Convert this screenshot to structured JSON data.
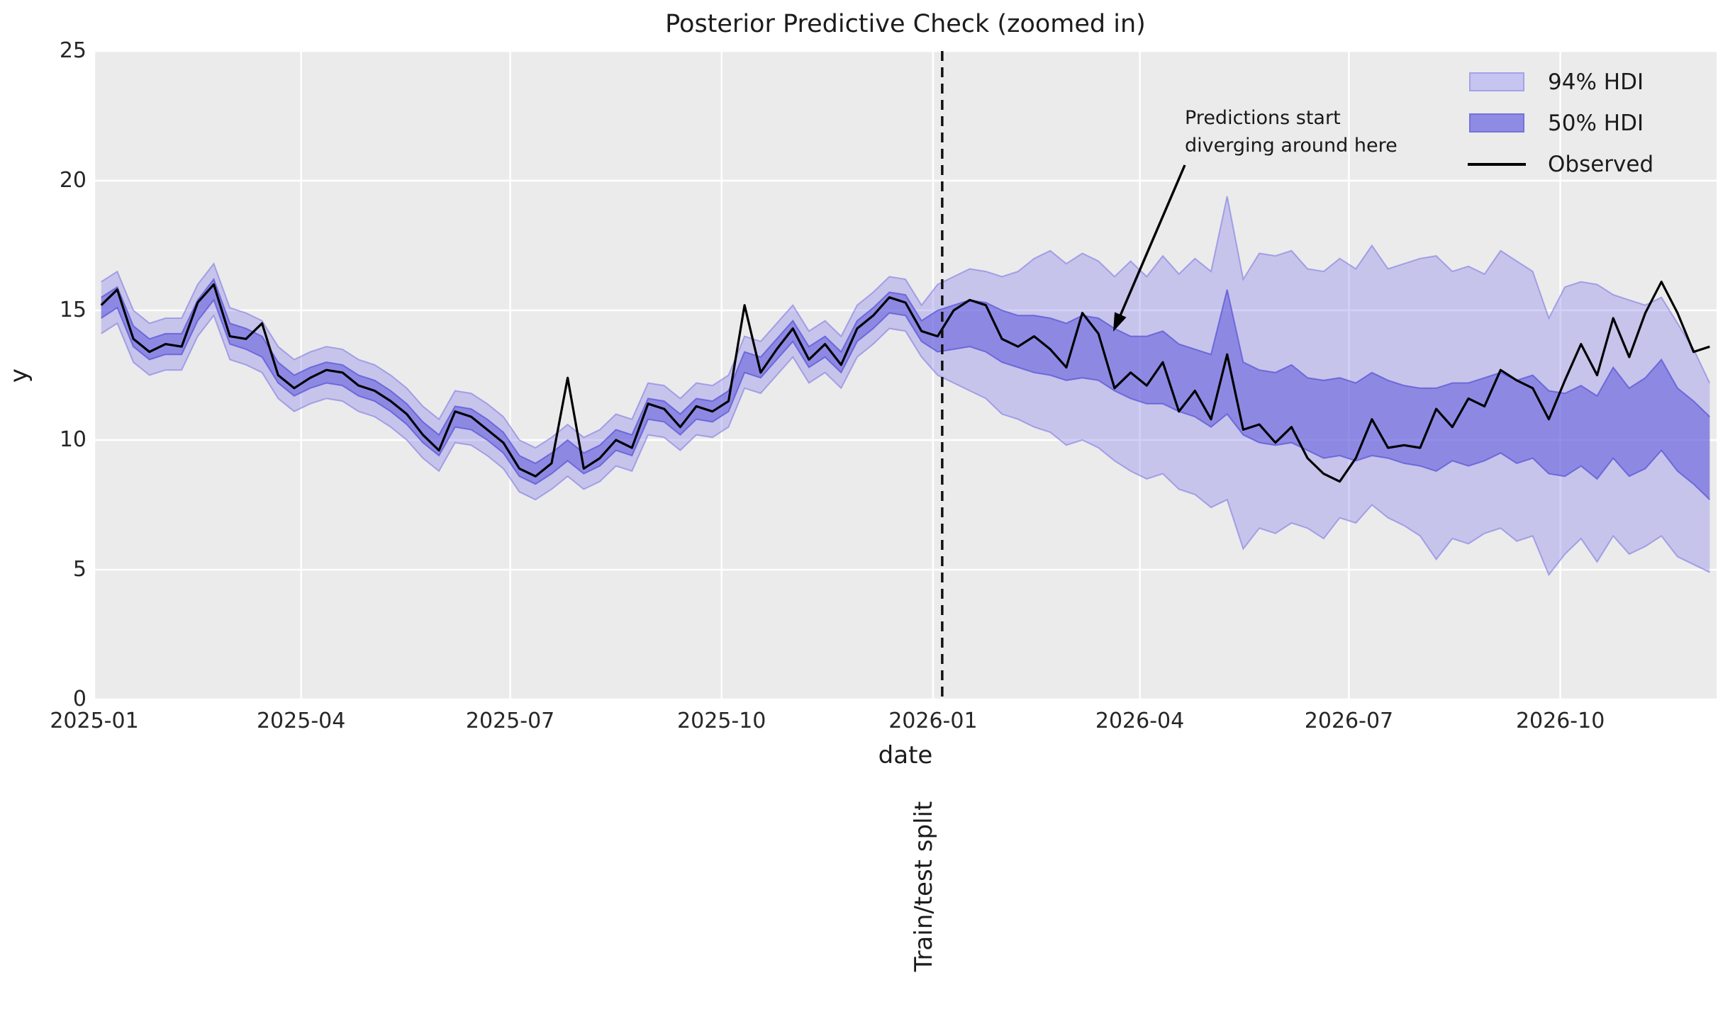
{
  "title": "Posterior Predictive Check (zoomed in)",
  "annotation": {
    "text": "Predictions start\ndiverging around here"
  },
  "split_label": "Train/test split",
  "legend": {
    "items": [
      {
        "label": "94% HDI",
        "swatch": "band94"
      },
      {
        "label": "50% HDI",
        "swatch": "band50"
      },
      {
        "label": "Observed",
        "swatch": "line"
      }
    ]
  },
  "colors": {
    "axes_background": "#ebebeb",
    "grid": "#ffffff",
    "band94_fill": "rgba(130,124,232,0.35)",
    "band94_edge": "rgba(110,104,225,0.50)",
    "band50_fill": "rgba(104,98,222,0.60)",
    "band50_edge": "rgba(80,74,212,0.65)",
    "observed_line": "#000000",
    "split_line": "#111111",
    "legend_band94_fill": "#c6c4f1",
    "legend_band94_edge": "#a5a2e8",
    "legend_band50_fill": "#8e8be4",
    "legend_band50_edge": "#7672d9"
  },
  "chart_data": {
    "type": "line",
    "title": "Posterior Predictive Check (zoomed in)",
    "xlabel": "date",
    "ylabel": "y",
    "ylim": [
      0,
      25
    ],
    "xlim": [
      "2025-01-01",
      "2026-12-08"
    ],
    "yticks": [
      0,
      5,
      10,
      15,
      20,
      25
    ],
    "xticks": [
      {
        "date": "2025-01-01",
        "label": "2025-01"
      },
      {
        "date": "2025-04-01",
        "label": "2025-04"
      },
      {
        "date": "2025-07-01",
        "label": "2025-07"
      },
      {
        "date": "2025-10-01",
        "label": "2025-10"
      },
      {
        "date": "2026-01-01",
        "label": "2026-01"
      },
      {
        "date": "2026-04-01",
        "label": "2026-04"
      },
      {
        "date": "2026-07-01",
        "label": "2026-07"
      },
      {
        "date": "2026-10-01",
        "label": "2026-10"
      }
    ],
    "grid": true,
    "legend_position": "upper right",
    "split_date": "2026-01-05",
    "annotation_point": {
      "date": "2026-03-14",
      "y": 14.2
    },
    "dates": [
      "2025-01-04",
      "2025-01-11",
      "2025-01-18",
      "2025-01-25",
      "2025-02-01",
      "2025-02-08",
      "2025-02-15",
      "2025-02-22",
      "2025-03-01",
      "2025-03-08",
      "2025-03-15",
      "2025-03-22",
      "2025-03-29",
      "2025-04-05",
      "2025-04-12",
      "2025-04-19",
      "2025-04-26",
      "2025-05-03",
      "2025-05-10",
      "2025-05-17",
      "2025-05-24",
      "2025-05-31",
      "2025-06-07",
      "2025-06-14",
      "2025-06-21",
      "2025-06-28",
      "2025-07-05",
      "2025-07-12",
      "2025-07-19",
      "2025-07-26",
      "2025-08-02",
      "2025-08-09",
      "2025-08-16",
      "2025-08-23",
      "2025-08-30",
      "2025-09-06",
      "2025-09-13",
      "2025-09-20",
      "2025-09-27",
      "2025-10-04",
      "2025-10-11",
      "2025-10-18",
      "2025-10-25",
      "2025-11-01",
      "2025-11-08",
      "2025-11-15",
      "2025-11-22",
      "2025-11-29",
      "2025-12-06",
      "2025-12-13",
      "2025-12-20",
      "2025-12-27",
      "2026-01-03",
      "2026-01-10",
      "2026-01-17",
      "2026-01-24",
      "2026-01-31",
      "2026-02-07",
      "2026-02-14",
      "2026-02-21",
      "2026-02-28",
      "2026-03-07",
      "2026-03-14",
      "2026-03-21",
      "2026-03-28",
      "2026-04-04",
      "2026-04-11",
      "2026-04-18",
      "2026-04-25",
      "2026-05-02",
      "2026-05-09",
      "2026-05-16",
      "2026-05-23",
      "2026-05-30",
      "2026-06-06",
      "2026-06-13",
      "2026-06-20",
      "2026-06-27",
      "2026-07-04",
      "2026-07-11",
      "2026-07-18",
      "2026-07-25",
      "2026-08-01",
      "2026-08-08",
      "2026-08-15",
      "2026-08-22",
      "2026-08-29",
      "2026-09-05",
      "2026-09-12",
      "2026-09-19",
      "2026-09-26",
      "2026-10-03",
      "2026-10-10",
      "2026-10-17",
      "2026-10-24",
      "2026-10-31",
      "2026-11-07",
      "2026-11-14",
      "2026-11-21",
      "2026-11-28",
      "2026-12-05"
    ],
    "series": [
      {
        "name": "Observed",
        "style": "line",
        "values": [
          15.2,
          15.8,
          13.9,
          13.4,
          13.7,
          13.6,
          15.3,
          16.0,
          14.0,
          13.9,
          14.5,
          12.5,
          12.0,
          12.4,
          12.7,
          12.6,
          12.1,
          11.9,
          11.5,
          11.0,
          10.2,
          9.6,
          11.1,
          10.9,
          10.4,
          9.9,
          8.9,
          8.6,
          9.1,
          12.4,
          8.9,
          9.3,
          10.0,
          9.7,
          11.4,
          11.2,
          10.5,
          11.3,
          11.1,
          11.5,
          15.2,
          12.6,
          13.5,
          14.3,
          13.1,
          13.7,
          12.9,
          14.3,
          14.8,
          15.5,
          15.3,
          14.2,
          14.0,
          15.0,
          15.4,
          15.2,
          13.9,
          13.6,
          14.0,
          13.5,
          12.8,
          14.9,
          14.1,
          12.0,
          12.6,
          12.1,
          13.0,
          11.1,
          11.9,
          10.8,
          13.3,
          10.4,
          10.6,
          9.9,
          10.5,
          9.3,
          8.7,
          8.4,
          9.3,
          10.8,
          9.7,
          9.8,
          9.7,
          11.2,
          10.5,
          11.6,
          11.3,
          12.7,
          12.3,
          12.0,
          10.8,
          12.3,
          13.7,
          12.5,
          14.7,
          13.2,
          14.9,
          16.1,
          14.9,
          13.4,
          13.6
        ]
      },
      {
        "name": "94% HDI",
        "style": "band",
        "lower": [
          14.1,
          14.5,
          13.0,
          12.5,
          12.7,
          12.7,
          14.0,
          14.8,
          13.1,
          12.9,
          12.6,
          11.6,
          11.1,
          11.4,
          11.6,
          11.5,
          11.1,
          10.9,
          10.5,
          10.0,
          9.3,
          8.8,
          9.9,
          9.8,
          9.4,
          8.9,
          8.0,
          7.7,
          8.1,
          8.6,
          8.1,
          8.4,
          9.0,
          8.8,
          10.2,
          10.1,
          9.6,
          10.2,
          10.1,
          10.5,
          12.0,
          11.8,
          12.5,
          13.2,
          12.2,
          12.6,
          12.0,
          13.2,
          13.7,
          14.3,
          14.2,
          13.2,
          12.5,
          12.2,
          11.9,
          11.6,
          11.0,
          10.8,
          10.5,
          10.3,
          9.8,
          10.0,
          9.7,
          9.2,
          8.8,
          8.5,
          8.7,
          8.1,
          7.9,
          7.4,
          7.7,
          5.8,
          6.6,
          6.4,
          6.8,
          6.6,
          6.2,
          7.0,
          6.8,
          7.5,
          7.0,
          6.7,
          6.3,
          5.4,
          6.2,
          6.0,
          6.4,
          6.6,
          6.1,
          6.3,
          4.8,
          5.6,
          6.2,
          5.3,
          6.3,
          5.6,
          5.9,
          6.3,
          5.5,
          5.2,
          4.9
        ],
        "upper": [
          16.1,
          16.5,
          15.0,
          14.5,
          14.7,
          14.7,
          16.0,
          16.8,
          15.1,
          14.9,
          14.6,
          13.6,
          13.1,
          13.4,
          13.6,
          13.5,
          13.1,
          12.9,
          12.5,
          12.0,
          11.3,
          10.8,
          11.9,
          11.8,
          11.4,
          10.9,
          10.0,
          9.7,
          10.1,
          10.6,
          10.1,
          10.4,
          11.0,
          10.8,
          12.2,
          12.1,
          11.6,
          12.2,
          12.1,
          12.5,
          14.0,
          13.8,
          14.5,
          15.2,
          14.2,
          14.6,
          14.0,
          15.2,
          15.7,
          16.3,
          16.2,
          15.2,
          16.0,
          16.3,
          16.6,
          16.5,
          16.3,
          16.5,
          17.0,
          17.3,
          16.8,
          17.2,
          16.9,
          16.3,
          16.9,
          16.3,
          17.1,
          16.4,
          17.0,
          16.5,
          19.4,
          16.2,
          17.2,
          17.1,
          17.3,
          16.6,
          16.5,
          17.0,
          16.6,
          17.5,
          16.6,
          16.8,
          17.0,
          17.1,
          16.5,
          16.7,
          16.4,
          17.3,
          16.9,
          16.5,
          14.7,
          15.9,
          16.1,
          16.0,
          15.6,
          15.4,
          15.2,
          15.5,
          14.5,
          13.5,
          12.2
        ]
      },
      {
        "name": "50% HDI",
        "style": "band",
        "lower": [
          14.7,
          15.1,
          13.6,
          13.1,
          13.3,
          13.3,
          14.6,
          15.4,
          13.7,
          13.5,
          13.2,
          12.2,
          11.7,
          12.0,
          12.2,
          12.1,
          11.7,
          11.5,
          11.1,
          10.6,
          9.9,
          9.4,
          10.5,
          10.4,
          10.0,
          9.5,
          8.6,
          8.3,
          8.7,
          9.2,
          8.7,
          9.0,
          9.6,
          9.4,
          10.8,
          10.7,
          10.2,
          10.8,
          10.7,
          11.1,
          12.6,
          12.4,
          13.1,
          13.8,
          12.8,
          13.2,
          12.6,
          13.8,
          14.3,
          14.9,
          14.8,
          13.8,
          13.4,
          13.5,
          13.6,
          13.4,
          13.0,
          12.8,
          12.6,
          12.5,
          12.3,
          12.4,
          12.3,
          11.9,
          11.6,
          11.4,
          11.4,
          11.1,
          10.9,
          10.5,
          11.0,
          10.2,
          9.9,
          9.8,
          9.9,
          9.6,
          9.3,
          9.4,
          9.2,
          9.4,
          9.3,
          9.1,
          9.0,
          8.8,
          9.2,
          9.0,
          9.2,
          9.5,
          9.1,
          9.3,
          8.7,
          8.6,
          9.0,
          8.5,
          9.3,
          8.6,
          8.9,
          9.6,
          8.8,
          8.3,
          7.7
        ],
        "upper": [
          15.5,
          15.9,
          14.4,
          13.9,
          14.1,
          14.1,
          15.4,
          16.2,
          14.5,
          14.3,
          14.0,
          13.0,
          12.5,
          12.8,
          13.0,
          12.9,
          12.5,
          12.3,
          11.9,
          11.4,
          10.7,
          10.2,
          11.3,
          11.2,
          10.8,
          10.3,
          9.4,
          9.1,
          9.5,
          10.0,
          9.5,
          9.8,
          10.4,
          10.2,
          11.6,
          11.5,
          11.0,
          11.6,
          11.5,
          11.9,
          13.4,
          13.2,
          13.9,
          14.6,
          13.6,
          14.0,
          13.4,
          14.6,
          15.1,
          15.7,
          15.6,
          14.6,
          15.0,
          15.2,
          15.4,
          15.3,
          15.0,
          14.8,
          14.8,
          14.7,
          14.5,
          14.8,
          14.7,
          14.3,
          14.0,
          14.0,
          14.2,
          13.7,
          13.5,
          13.3,
          15.8,
          13.0,
          12.7,
          12.6,
          12.9,
          12.4,
          12.3,
          12.4,
          12.2,
          12.6,
          12.3,
          12.1,
          12.0,
          12.0,
          12.2,
          12.2,
          12.4,
          12.6,
          12.3,
          12.5,
          11.9,
          11.8,
          12.1,
          11.7,
          12.8,
          12.0,
          12.4,
          13.1,
          12.0,
          11.5,
          10.9
        ]
      }
    ]
  }
}
